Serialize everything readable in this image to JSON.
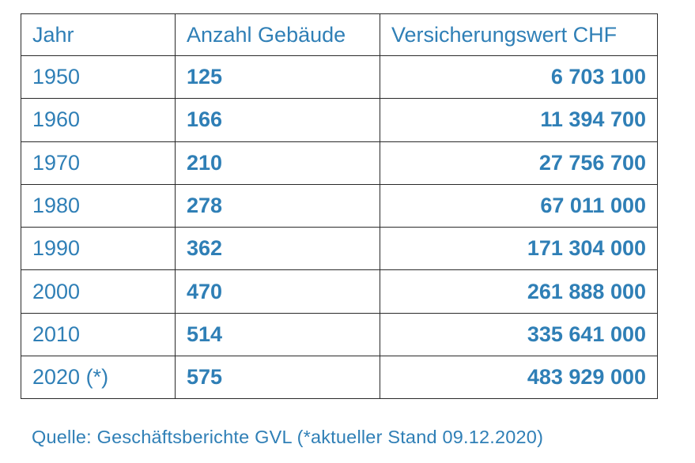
{
  "table": {
    "headers": [
      "Jahr",
      "Anzahl Gebäude",
      "Versicherungswert CHF"
    ],
    "rows": [
      {
        "year": "1950",
        "count": "125",
        "value": "6 703 100"
      },
      {
        "year": "1960",
        "count": "166",
        "value": "11 394 700"
      },
      {
        "year": "1970",
        "count": "210",
        "value": "27 756 700"
      },
      {
        "year": "1980",
        "count": "278",
        "value": "67 011 000"
      },
      {
        "year": "1990",
        "count": "362",
        "value": "171 304 000"
      },
      {
        "year": "2000",
        "count": "470",
        "value": "261 888 000"
      },
      {
        "year": "2010",
        "count": "514",
        "value": "335 641 000"
      },
      {
        "year": "2020 (*)",
        "count": "575",
        "value": "483 929 000"
      }
    ]
  },
  "caption": "Quelle: Geschäftsberichte GVL (*aktueller Stand 09.12.2020)",
  "colors": {
    "text": "#2f7fb6",
    "border": "#2a2a2a"
  }
}
